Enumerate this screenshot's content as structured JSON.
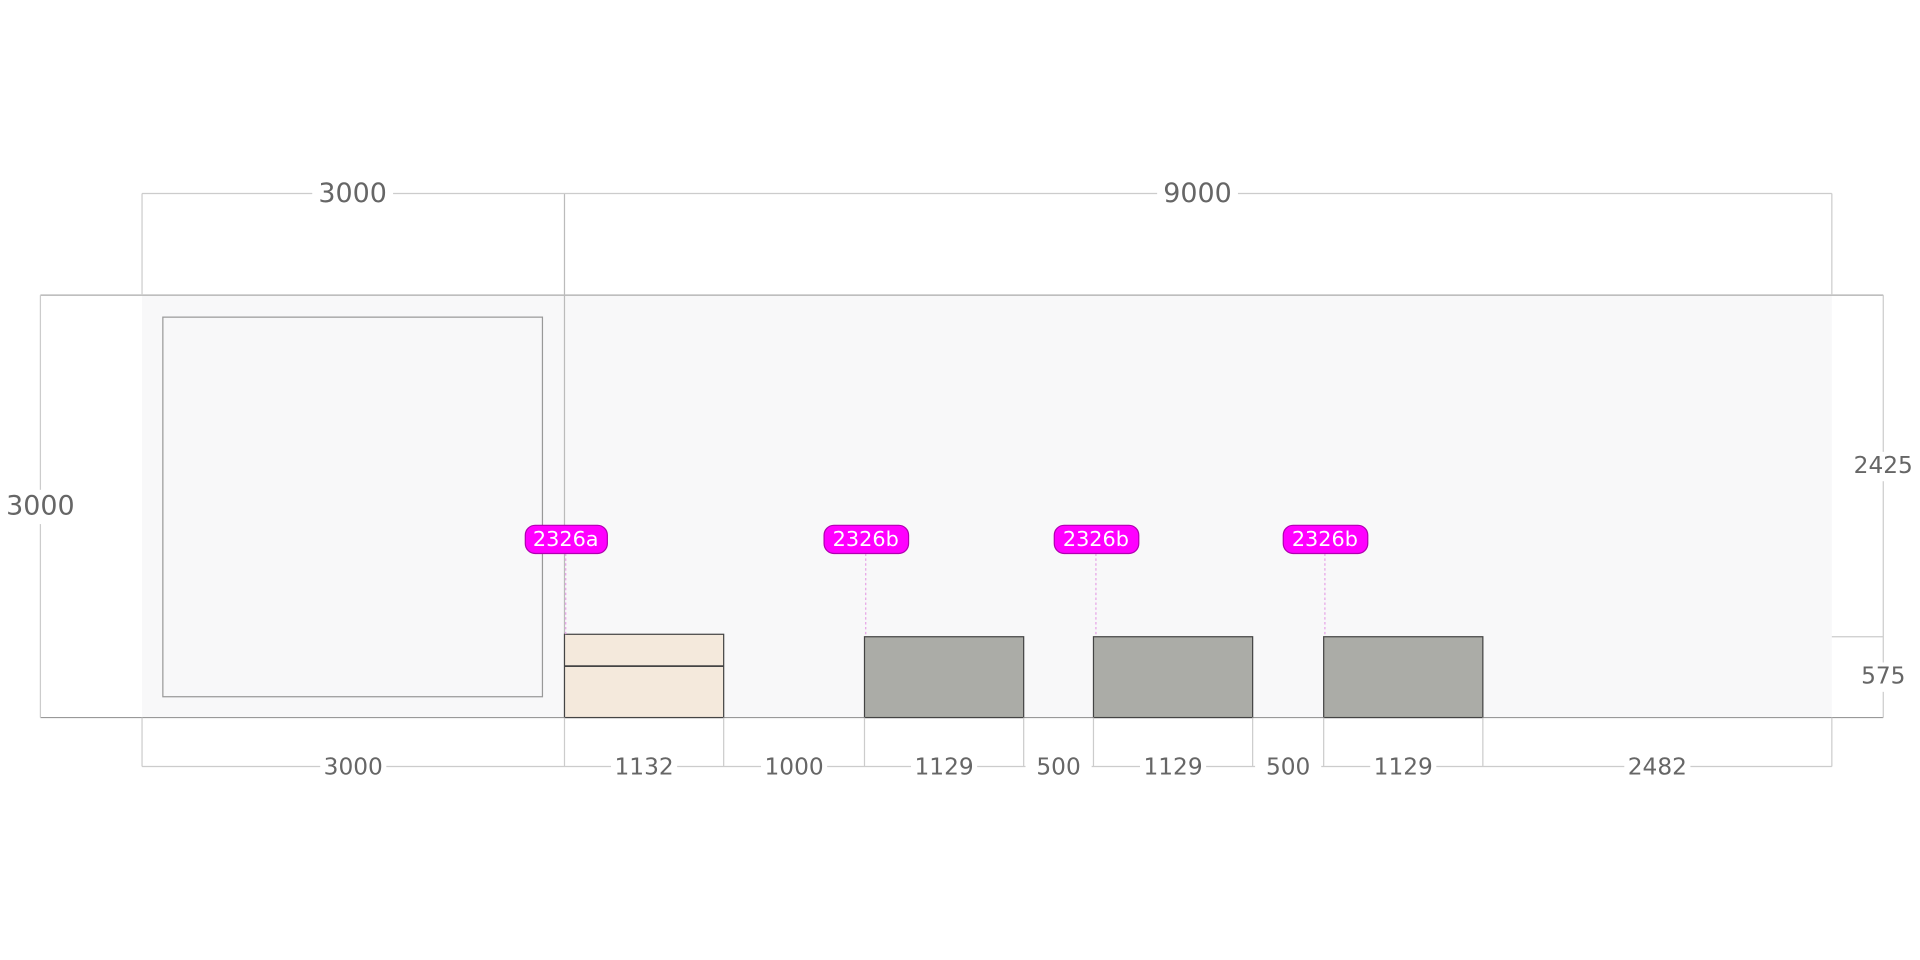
{
  "dimensions": {
    "top": [
      3000,
      9000
    ],
    "left": 3000,
    "right": [
      2425,
      575
    ],
    "bottom": [
      3000,
      1132,
      1000,
      1129,
      500,
      1129,
      500,
      1129,
      2482
    ]
  },
  "tags": [
    "2326a",
    "2326b",
    "2326b",
    "2326b"
  ]
}
